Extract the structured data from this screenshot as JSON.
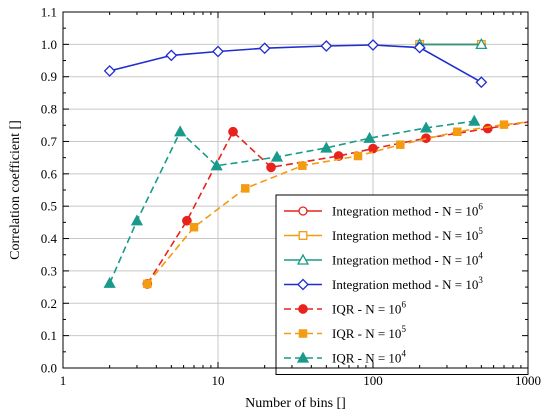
{
  "chart_data": {
    "type": "line",
    "xlabel": "Number of bins []",
    "ylabel": "Correlation coefficient []",
    "xscale": "log",
    "xlim": [
      1,
      1000
    ],
    "ylim": [
      0,
      1.1
    ],
    "x_ticks": [
      1,
      10,
      100,
      1000
    ],
    "x_tick_labels": [
      "1",
      "10",
      "100",
      "1000"
    ],
    "y_ticks": [
      0,
      0.1,
      0.2,
      0.3,
      0.4,
      0.5,
      0.6,
      0.7,
      0.8,
      0.9,
      1.0,
      1.1
    ],
    "y_tick_labels": [
      "0.0",
      "0.1",
      "0.2",
      "0.3",
      "0.4",
      "0.5",
      "0.6",
      "0.7",
      "0.8",
      "0.9",
      "1.0",
      "1.1"
    ],
    "grid": true,
    "legend_position": "bottom-right",
    "series": [
      {
        "name": "Integration method - N = 10",
        "exp": "6",
        "color": "#e8231d",
        "style": "solid",
        "marker": "circle-open",
        "points": [
          [
            200,
            1.0
          ],
          [
            500,
            1.0
          ]
        ]
      },
      {
        "name": "Integration method - N = 10",
        "exp": "5",
        "color": "#f39c12",
        "style": "solid",
        "marker": "square-open",
        "points": [
          [
            200,
            1.0
          ],
          [
            500,
            1.0
          ]
        ]
      },
      {
        "name": "Integration method - N = 10",
        "exp": "4",
        "color": "#1a9a8a",
        "style": "solid",
        "marker": "triangle-open",
        "points": [
          [
            200,
            1.0
          ],
          [
            500,
            1.0
          ]
        ]
      },
      {
        "name": "Integration method - N = 10",
        "exp": "3",
        "color": "#1f2ecf",
        "style": "solid",
        "marker": "diamond-open",
        "points": [
          [
            2,
            0.918
          ],
          [
            5,
            0.966
          ],
          [
            10,
            0.978
          ],
          [
            20,
            0.988
          ],
          [
            50,
            0.995
          ],
          [
            100,
            0.998
          ],
          [
            200,
            0.99
          ],
          [
            500,
            0.883
          ]
        ]
      },
      {
        "name": "IQR - N = 10",
        "exp": "6",
        "color": "#e8231d",
        "style": "dashed",
        "marker": "circle-filled",
        "points": [
          [
            3.5,
            0.26
          ],
          [
            6.3,
            0.455
          ],
          [
            12.5,
            0.73
          ],
          [
            22,
            0.62
          ],
          [
            60,
            0.655
          ],
          [
            100,
            0.678
          ],
          [
            220,
            0.71
          ],
          [
            550,
            0.74
          ],
          [
            1000,
            0.76
          ]
        ]
      },
      {
        "name": "IQR - N = 10",
        "exp": "5",
        "color": "#f39c12",
        "style": "dashed",
        "marker": "square-filled",
        "points": [
          [
            3.5,
            0.26
          ],
          [
            7,
            0.435
          ],
          [
            15,
            0.555
          ],
          [
            35,
            0.625
          ],
          [
            80,
            0.655
          ],
          [
            150,
            0.69
          ],
          [
            350,
            0.73
          ],
          [
            700,
            0.752
          ],
          [
            1000,
            0.76
          ]
        ]
      },
      {
        "name": "IQR - N = 10",
        "exp": "4",
        "color": "#1a9a8a",
        "style": "dashed",
        "marker": "triangle-filled",
        "points": [
          [
            2,
            0.262
          ],
          [
            3,
            0.455
          ],
          [
            5.7,
            0.73
          ],
          [
            9.8,
            0.625
          ],
          [
            24,
            0.652
          ],
          [
            50,
            0.68
          ],
          [
            95,
            0.71
          ],
          [
            220,
            0.742
          ],
          [
            450,
            0.763
          ]
        ]
      }
    ]
  }
}
